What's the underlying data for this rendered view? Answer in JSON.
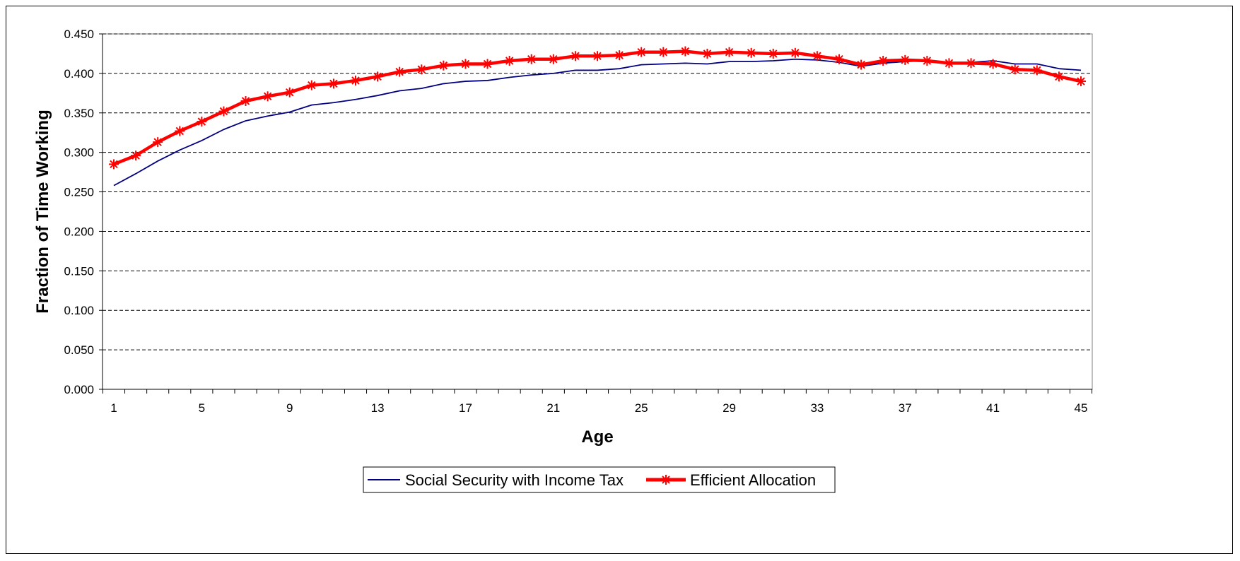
{
  "chart_data": {
    "type": "line",
    "xlabel": "Age",
    "ylabel": "Fraction of Time Working",
    "y_ticks": [
      "0.000",
      "0.050",
      "0.100",
      "0.150",
      "0.200",
      "0.250",
      "0.300",
      "0.350",
      "0.400",
      "0.450"
    ],
    "x_tick_labels": [
      "1",
      "5",
      "9",
      "13",
      "17",
      "21",
      "25",
      "29",
      "33",
      "37",
      "41",
      "45"
    ],
    "ylim": [
      0,
      0.45
    ],
    "xlim": [
      1,
      45
    ],
    "grid": "horizontal-dashed",
    "legend_position": "bottom",
    "x": [
      1,
      2,
      3,
      4,
      5,
      6,
      7,
      8,
      9,
      10,
      11,
      12,
      13,
      14,
      15,
      16,
      17,
      18,
      19,
      20,
      21,
      22,
      23,
      24,
      25,
      26,
      27,
      28,
      29,
      30,
      31,
      32,
      33,
      34,
      35,
      36,
      37,
      38,
      39,
      40,
      41,
      42,
      43,
      44,
      45
    ],
    "series": [
      {
        "name": "Social Security with Income Tax",
        "color": "#000080",
        "marker": "none",
        "values": [
          0.258,
          0.273,
          0.289,
          0.303,
          0.315,
          0.329,
          0.34,
          0.346,
          0.351,
          0.36,
          0.363,
          0.367,
          0.372,
          0.378,
          0.381,
          0.387,
          0.39,
          0.391,
          0.395,
          0.398,
          0.4,
          0.404,
          0.404,
          0.406,
          0.411,
          0.412,
          0.413,
          0.412,
          0.415,
          0.415,
          0.416,
          0.418,
          0.417,
          0.414,
          0.409,
          0.413,
          0.415,
          0.416,
          0.414,
          0.414,
          0.416,
          0.412,
          0.412,
          0.406,
          0.404
        ]
      },
      {
        "name": "Efficient Allocation",
        "color": "#ff0000",
        "marker": "asterisk",
        "values": [
          0.285,
          0.296,
          0.313,
          0.327,
          0.339,
          0.352,
          0.365,
          0.371,
          0.376,
          0.385,
          0.387,
          0.391,
          0.396,
          0.402,
          0.405,
          0.41,
          0.412,
          0.412,
          0.416,
          0.418,
          0.418,
          0.422,
          0.422,
          0.423,
          0.427,
          0.427,
          0.428,
          0.425,
          0.427,
          0.426,
          0.425,
          0.426,
          0.422,
          0.418,
          0.411,
          0.416,
          0.417,
          0.416,
          0.413,
          0.413,
          0.412,
          0.405,
          0.404,
          0.396,
          0.39
        ]
      }
    ]
  }
}
